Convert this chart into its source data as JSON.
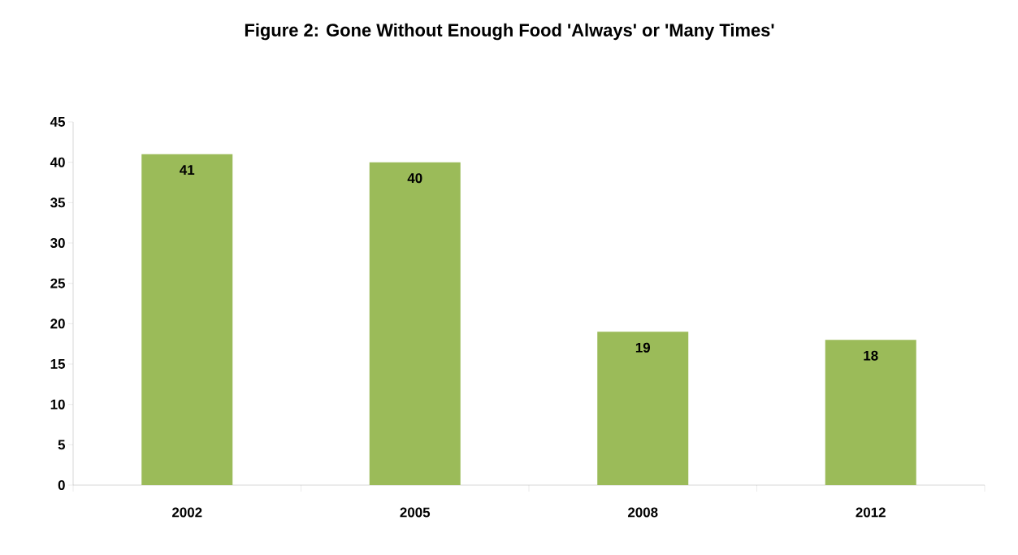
{
  "chart_data": {
    "type": "bar",
    "title": "Figure 2: Gone Without Enough Food 'Always' or 'Many Times'",
    "categories": [
      "2002",
      "2005",
      "2008",
      "2012"
    ],
    "values": [
      41,
      40,
      19,
      18
    ],
    "color": "#9bbb59",
    "ylim": [
      0,
      45
    ],
    "yticks": [
      0,
      5,
      10,
      15,
      20,
      25,
      30,
      35,
      40,
      45
    ],
    "data_labels": true
  }
}
